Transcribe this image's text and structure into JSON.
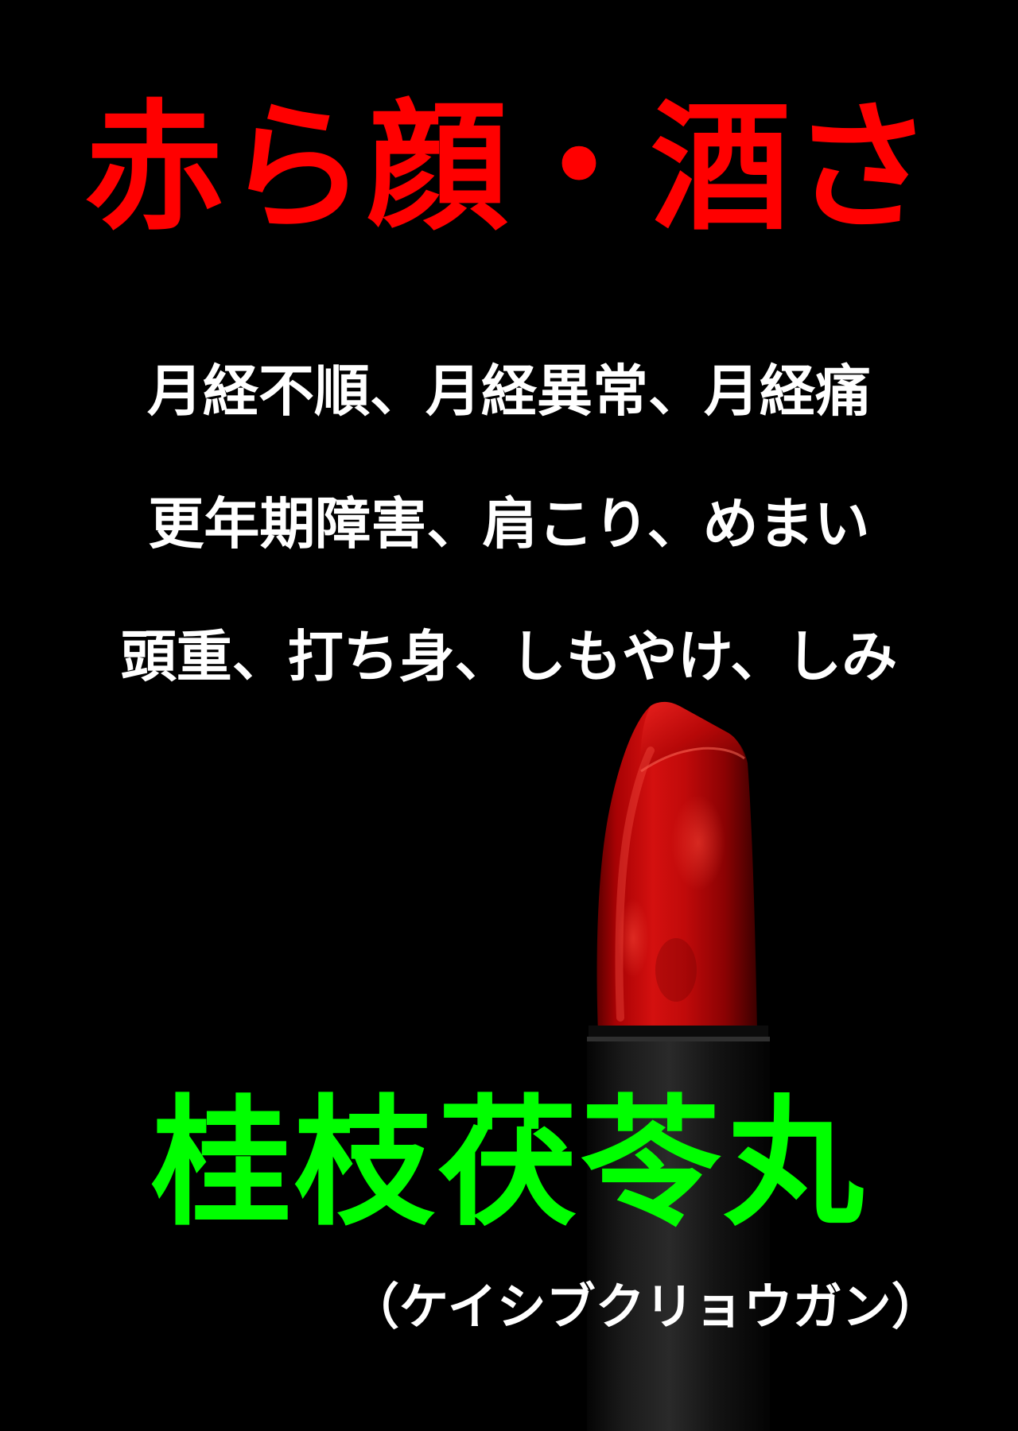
{
  "poster": {
    "headline": "赤ら顔・酒さ",
    "symptom_lines": [
      "月経不順、月経異常、月経痛",
      "更年期障害、肩こり、めまい",
      "頭重、打ち身、しもやけ、しみ"
    ],
    "product_name": "桂枝茯苓丸",
    "product_reading": "（ケイシブクリョウガン）",
    "image": "lipstick"
  },
  "colors": {
    "background": "#000000",
    "headline": "#ff0000",
    "symptoms": "#ffffff",
    "product_name": "#00ff00",
    "lipstick": "#c8090a",
    "tube": "#161616"
  }
}
